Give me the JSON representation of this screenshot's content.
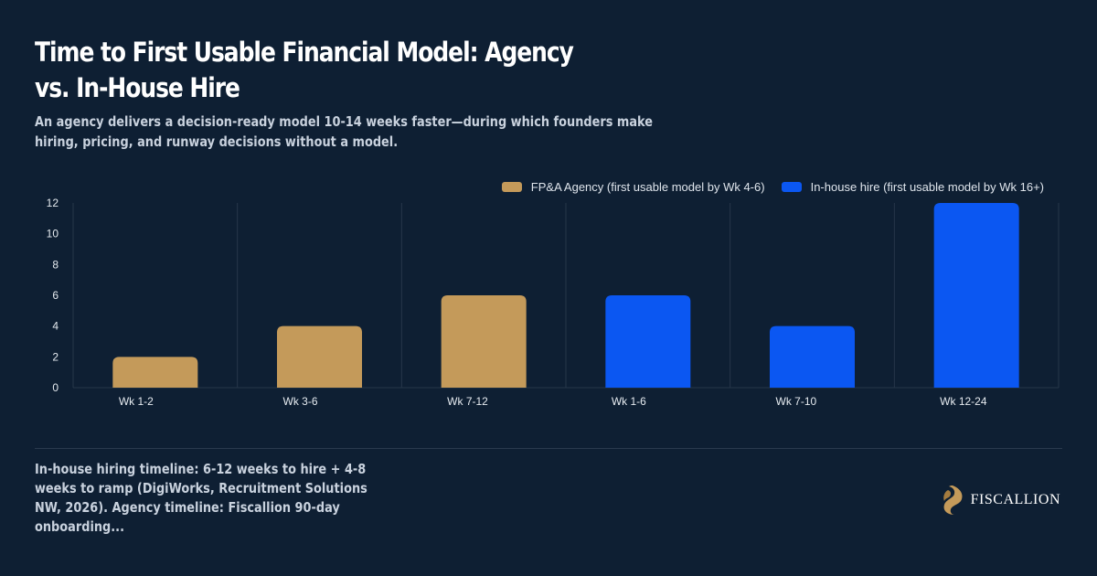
{
  "title": "Time to First Usable Financial Model: Agency vs. In-House Hire",
  "subtitle": "An agency delivers a decision-ready model 10-14 weeks faster—during which founders make hiring, pricing, and runway decisions without a model.",
  "footnote": "In-house hiring timeline: 6-12 weeks to hire + 4-8 weeks to ramp (DigiWorks, Recruitment Solutions NW, 2026). Agency timeline: Fiscallion 90-day onboarding...",
  "brand": {
    "name": "FISCALLION",
    "icon": "lion-logo-icon",
    "color": "#c49a5a"
  },
  "colors": {
    "background": "#0e1f33",
    "agency": "#c49a5a",
    "inhouse": "#0b57f2",
    "grid": "#26374a",
    "axis_text": "#e6ebf0"
  },
  "chart_data": {
    "type": "bar",
    "title": "Time to First Usable Financial Model: Agency vs. In-House Hire",
    "xlabel": "",
    "ylabel": "",
    "ylim": [
      0,
      12
    ],
    "yticks": [
      0,
      2,
      4,
      6,
      8,
      10,
      12
    ],
    "grid": "vertical",
    "legend_position": "top-right",
    "categories": [
      "Wk 1-2",
      "Wk 3-6",
      "Wk 7-12",
      "Wk 1-6",
      "Wk 7-10",
      "Wk 12-24"
    ],
    "values": [
      2,
      4,
      6,
      6,
      4,
      12
    ],
    "category_series": [
      0,
      0,
      0,
      1,
      1,
      1
    ],
    "series": [
      {
        "name": "FP&A Agency (first usable model by Wk 4-6)",
        "color": "#c49a5a"
      },
      {
        "name": "In-house hire (first usable model by Wk 16+)",
        "color": "#0b57f2"
      }
    ]
  }
}
